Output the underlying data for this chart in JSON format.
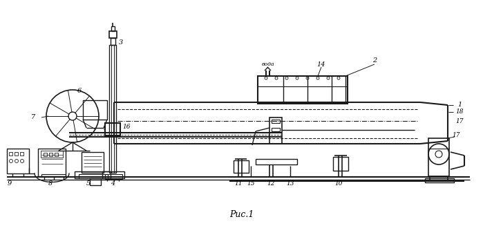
{
  "title": "Рис.1",
  "bg_color": "#ffffff",
  "line_color": "#1a1a1a",
  "fig_width": 6.99,
  "fig_height": 3.27,
  "dpi": 100
}
